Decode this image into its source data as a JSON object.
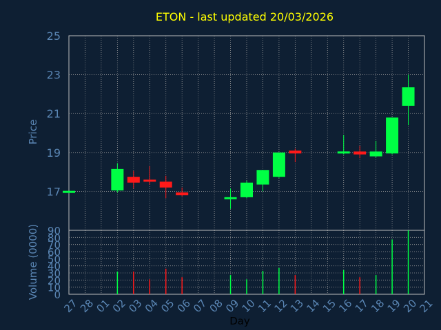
{
  "title": "ETON - last updated 20/03/2026",
  "colors": {
    "background": "#0e1f33",
    "plot": "#0e1f33",
    "frame": "#bcbcbc",
    "grid": "#9a9a9a",
    "axis_text": "#5a86b4",
    "title_text": "#ffff00",
    "up": "#00ff44",
    "down": "#ff1a1a"
  },
  "chart_data": [
    {
      "type": "candlestick",
      "ylabel": "Price",
      "ylim": [
        15,
        25
      ],
      "yticks": [
        17,
        19,
        21,
        23,
        25
      ],
      "grid": true,
      "categories": [
        "27",
        "28",
        "01",
        "02",
        "03",
        "04",
        "05",
        "06",
        "07",
        "08",
        "09",
        "10",
        "11",
        "12",
        "13",
        "14",
        "15",
        "16",
        "17",
        "18",
        "19",
        "20",
        "21"
      ],
      "candles": [
        {
          "day": "27",
          "open": 16.95,
          "high": 17.0,
          "low": 16.9,
          "close": 17.0
        },
        {
          "day": "02",
          "open": 17.05,
          "high": 18.45,
          "low": 16.95,
          "close": 18.15
        },
        {
          "day": "03",
          "open": 17.75,
          "high": 18.05,
          "low": 17.15,
          "close": 17.45
        },
        {
          "day": "04",
          "open": 17.6,
          "high": 18.3,
          "low": 17.35,
          "close": 17.5
        },
        {
          "day": "05",
          "open": 17.5,
          "high": 17.8,
          "low": 16.65,
          "close": 17.2
        },
        {
          "day": "06",
          "open": 16.95,
          "high": 17.2,
          "low": 16.75,
          "close": 16.8
        },
        {
          "day": "09",
          "open": 16.6,
          "high": 17.15,
          "low": 16.1,
          "close": 16.7
        },
        {
          "day": "10",
          "open": 16.7,
          "high": 17.55,
          "low": 16.65,
          "close": 17.45
        },
        {
          "day": "11",
          "open": 17.35,
          "high": 18.1,
          "low": 17.0,
          "close": 18.1
        },
        {
          "day": "12",
          "open": 17.75,
          "high": 19.0,
          "low": 17.7,
          "close": 19.0
        },
        {
          "day": "13",
          "open": 19.1,
          "high": 19.2,
          "low": 18.5,
          "close": 18.95
        },
        {
          "day": "16",
          "open": 18.95,
          "high": 19.9,
          "low": 18.9,
          "close": 19.05
        },
        {
          "day": "17",
          "open": 19.05,
          "high": 19.35,
          "low": 18.7,
          "close": 18.9
        },
        {
          "day": "18",
          "open": 18.8,
          "high": 19.6,
          "low": 18.75,
          "close": 19.05
        },
        {
          "day": "19",
          "open": 18.95,
          "high": 20.8,
          "low": 18.9,
          "close": 20.8
        },
        {
          "day": "20",
          "open": 21.4,
          "high": 23.0,
          "low": 20.4,
          "close": 22.35
        }
      ]
    },
    {
      "type": "bar",
      "ylabel": "Volume (0000)",
      "xlabel": "Day",
      "ylim": [
        0,
        90
      ],
      "yticks": [
        0,
        10,
        20,
        30,
        40,
        50,
        60,
        70,
        80,
        90
      ],
      "grid": true,
      "categories": [
        "27",
        "28",
        "01",
        "02",
        "03",
        "04",
        "05",
        "06",
        "07",
        "08",
        "09",
        "10",
        "11",
        "12",
        "13",
        "14",
        "15",
        "16",
        "17",
        "18",
        "19",
        "20",
        "21"
      ],
      "bars": [
        {
          "day": "02",
          "value": 32,
          "direction": "up"
        },
        {
          "day": "03",
          "value": 32,
          "direction": "down"
        },
        {
          "day": "04",
          "value": 21,
          "direction": "down"
        },
        {
          "day": "05",
          "value": 36,
          "direction": "down"
        },
        {
          "day": "06",
          "value": 24,
          "direction": "down"
        },
        {
          "day": "09",
          "value": 27,
          "direction": "up"
        },
        {
          "day": "10",
          "value": 21,
          "direction": "up"
        },
        {
          "day": "11",
          "value": 33,
          "direction": "up"
        },
        {
          "day": "12",
          "value": 37,
          "direction": "up"
        },
        {
          "day": "13",
          "value": 27,
          "direction": "down"
        },
        {
          "day": "16",
          "value": 34,
          "direction": "up"
        },
        {
          "day": "17",
          "value": 24,
          "direction": "down"
        },
        {
          "day": "18",
          "value": 27,
          "direction": "up"
        },
        {
          "day": "19",
          "value": 77,
          "direction": "up"
        },
        {
          "day": "20",
          "value": 90,
          "direction": "up"
        }
      ]
    }
  ]
}
